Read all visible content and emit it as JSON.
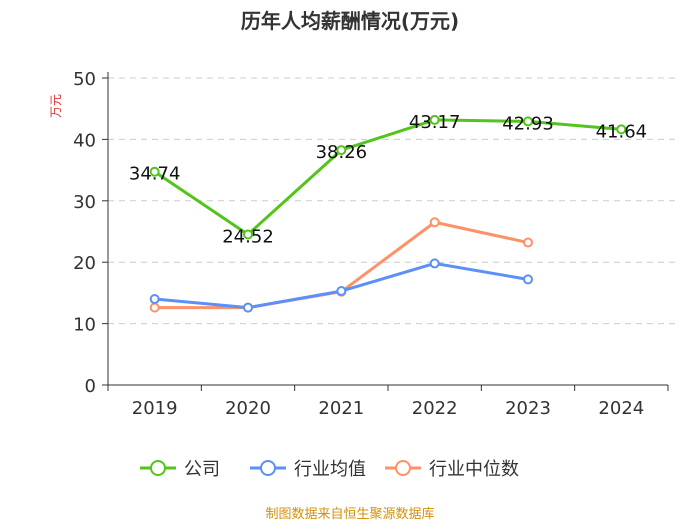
{
  "chart_data": {
    "type": "line",
    "title": "历年人均薪酬情况(万元)",
    "ylabel": "万元",
    "xlabel": "",
    "categories": [
      "2019",
      "2020",
      "2021",
      "2022",
      "2023",
      "2024"
    ],
    "ylim": [
      0,
      50
    ],
    "yticks": [
      "0",
      "10",
      "20",
      "30",
      "40",
      "50"
    ],
    "grid": true,
    "legend_position": "bottom",
    "series": [
      {
        "name": "公司",
        "color": "#52c41a",
        "values": [
          34.74,
          24.52,
          38.26,
          43.17,
          42.93,
          41.64
        ],
        "labels": [
          "34.74",
          "24.52",
          "38.26",
          "43.17",
          "42.93",
          "41.64"
        ]
      },
      {
        "name": "行业均值",
        "color": "#5b8ff9",
        "values": [
          14.0,
          12.6,
          15.3,
          19.8,
          17.2,
          null
        ]
      },
      {
        "name": "行业中位数",
        "color": "#ff9166",
        "values": [
          12.6,
          12.6,
          15.2,
          26.5,
          23.2,
          null
        ]
      }
    ]
  },
  "footer": "制图数据来自恒生聚源数据库"
}
